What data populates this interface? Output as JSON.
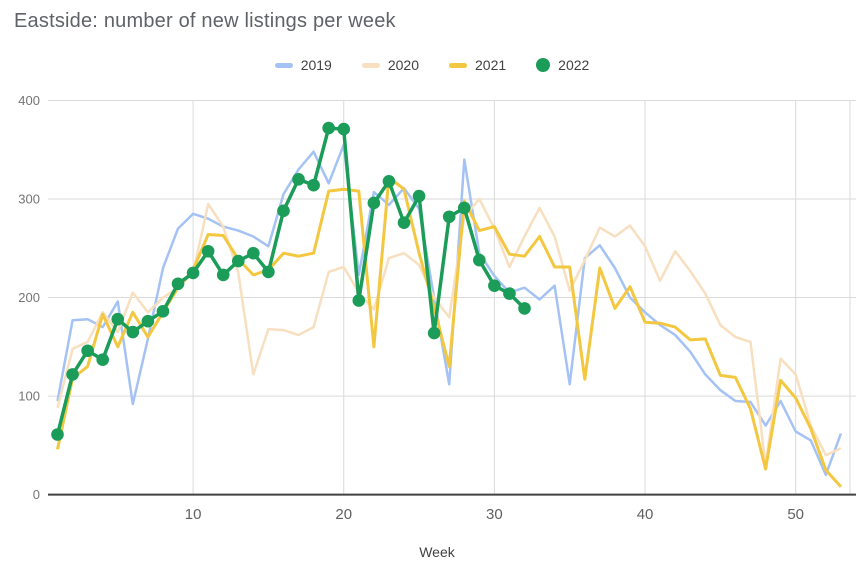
{
  "title": "Eastside: number of new listings per week",
  "legend": [
    {
      "label": "2019"
    },
    {
      "label": "2020"
    },
    {
      "label": "2021"
    },
    {
      "label": "2022"
    }
  ],
  "axis": {
    "x_label": "Week"
  },
  "colors": {
    "grid": "#dadada",
    "axis_line": "#424242",
    "tick_text": "#757575",
    "x_tick_text": "#616161"
  },
  "chart_data": {
    "type": "line",
    "title": "Eastside: number of new listings per week",
    "xlabel": "Week",
    "ylabel": "",
    "xlim": [
      1,
      53
    ],
    "ylim": [
      0,
      400
    ],
    "x_ticks": [
      10,
      20,
      30,
      40,
      50
    ],
    "y_ticks": [
      0,
      100,
      200,
      300,
      400
    ],
    "grid": true,
    "legend_position": "top-center",
    "x_unit": "week_number",
    "series": [
      {
        "name": "2019",
        "color": "#a4c2f4",
        "style": "line",
        "line_width": 2.5,
        "values": [
          95,
          177,
          178,
          170,
          196,
          92,
          158,
          230,
          270,
          285,
          280,
          272,
          268,
          262,
          252,
          305,
          330,
          348,
          316,
          355,
          223,
          307,
          294,
          311,
          290,
          200,
          112,
          340,
          245,
          222,
          205,
          210,
          198,
          212,
          112,
          240,
          253,
          230,
          200,
          185,
          172,
          162,
          145,
          122,
          106,
          95,
          94,
          70,
          95,
          64,
          55,
          20,
          62
        ]
      },
      {
        "name": "2020",
        "color": "#f7dfc0",
        "style": "line",
        "line_width": 2.5,
        "values": [
          88,
          148,
          155,
          185,
          165,
          205,
          185,
          200,
          210,
          225,
          295,
          272,
          225,
          122,
          168,
          167,
          162,
          170,
          226,
          231,
          205,
          188,
          240,
          245,
          233,
          200,
          180,
          282,
          300,
          270,
          231,
          262,
          291,
          262,
          207,
          238,
          271,
          262,
          273,
          252,
          217,
          247,
          227,
          204,
          172,
          160,
          155,
          30,
          138,
          122,
          70,
          40,
          47
        ]
      },
      {
        "name": "2021",
        "color": "#f3c73f",
        "style": "line",
        "line_width": 3,
        "values": [
          46,
          118,
          130,
          183,
          150,
          185,
          160,
          185,
          210,
          228,
          264,
          263,
          239,
          223,
          228,
          245,
          242,
          245,
          308,
          310,
          308,
          150,
          322,
          310,
          245,
          190,
          130,
          298,
          268,
          272,
          244,
          242,
          262,
          231,
          231,
          117,
          230,
          189,
          211,
          175,
          174,
          170,
          157,
          158,
          121,
          119,
          87,
          26,
          116,
          98,
          67,
          25,
          8
        ]
      },
      {
        "name": "2022",
        "color": "#1b9c58",
        "style": "line+markers",
        "line_width": 3.5,
        "marker_radius": 6.3,
        "values": [
          61,
          122,
          146,
          137,
          178,
          165,
          176,
          186,
          214,
          225,
          247,
          223,
          237,
          245,
          226,
          288,
          320,
          314,
          372,
          371,
          197,
          296,
          318,
          276,
          303,
          164,
          282,
          291,
          238,
          212,
          204,
          189
        ]
      }
    ]
  }
}
